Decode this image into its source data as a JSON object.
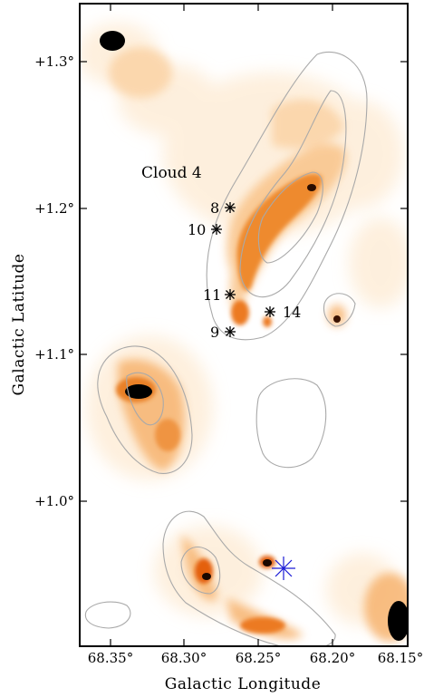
{
  "figure": {
    "x_axis_label": "Galactic Longitude",
    "y_axis_label": "Galactic Latitude",
    "x_ticks": [
      "68.35°",
      "68.30°",
      "68.25°",
      "68.20°",
      "68.15°"
    ],
    "y_ticks": [
      "+1.3°",
      "+1.2°",
      "+1.1°",
      "+1.0°"
    ],
    "cloud_label": "Cloud 4",
    "sources": [
      {
        "id": "8",
        "label": "8"
      },
      {
        "id": "10",
        "label": "10"
      },
      {
        "id": "11",
        "label": "11"
      },
      {
        "id": "9",
        "label": "9"
      },
      {
        "id": "14",
        "label": "14"
      }
    ],
    "colors": {
      "emission_light": "#fde3c2",
      "emission_mid": "#f6a24a",
      "emission_strong": "#e4600d",
      "emission_peak": "#000000",
      "contour": "#a9a9a9",
      "marker_star": "#000000",
      "marker_blue": "#1a1ad6"
    }
  }
}
